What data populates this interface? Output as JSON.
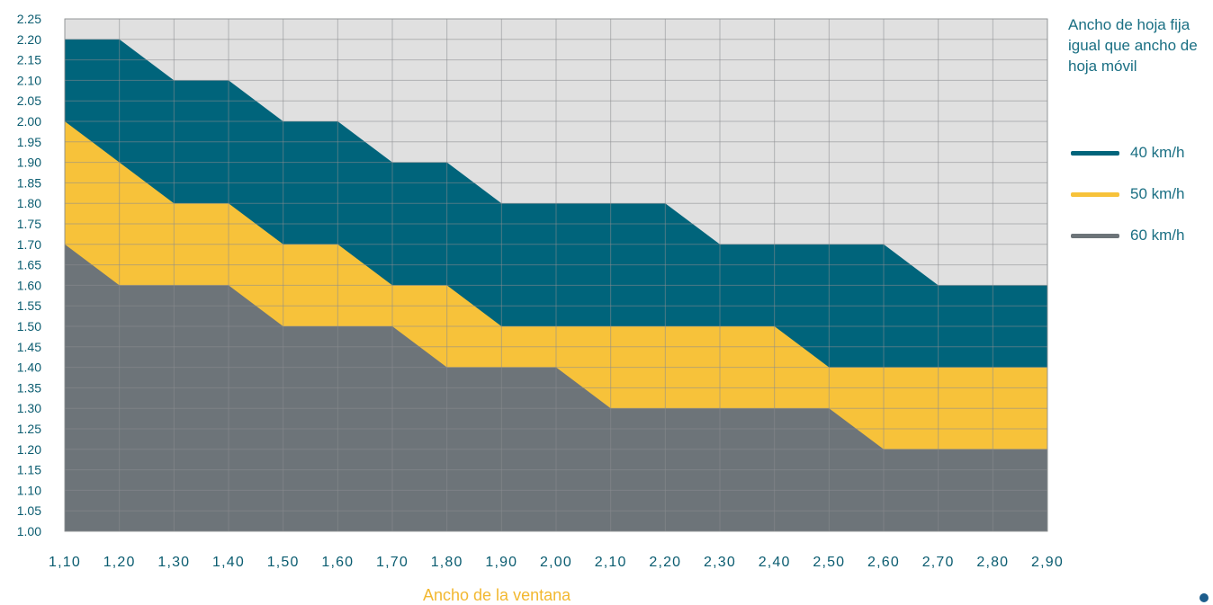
{
  "colors": {
    "band_40": "#00647b",
    "band_50": "#f7c23a",
    "band_60": "#6d7479",
    "plot_bg": "#e0e0e0",
    "grid": "#8a8d90",
    "tick_label": "#0a5c70",
    "legend_text": "#1a6f83",
    "xlabel": "#f2b830",
    "corner_mark": "#1d5d8c"
  },
  "legend": {
    "title": "Ancho de hoja fija igual que ancho de hoja móvil",
    "placement": "right",
    "items": [
      {
        "label": "40 km/h",
        "color": "#00647b"
      },
      {
        "label": "50 km/h",
        "color": "#f7c23a"
      },
      {
        "label": "60 km/h",
        "color": "#6d7479"
      }
    ]
  },
  "chart_data": {
    "type": "area",
    "title": "",
    "xlabel": "Ancho de la ventana",
    "ylabel": "",
    "x": [
      1.1,
      1.2,
      1.3,
      1.4,
      1.5,
      1.6,
      1.7,
      1.8,
      1.9,
      2.0,
      2.1,
      2.2,
      2.3,
      2.4,
      2.5,
      2.6,
      2.7,
      2.8,
      2.9
    ],
    "x_tick_labels": [
      "1,10",
      "1,20",
      "1,30",
      "1,40",
      "1,50",
      "1,60",
      "1,70",
      "1,80",
      "1,90",
      "2,00",
      "2,10",
      "2,20",
      "2,30",
      "2,40",
      "2,50",
      "2,60",
      "2,70",
      "2,80",
      "2,90"
    ],
    "y_tick_labels": [
      "2.25",
      "2.20",
      "2.15",
      "2.10",
      "2.05",
      "2.00",
      "1.95",
      "1.90",
      "1.85",
      "1.80",
      "1.75",
      "1.70",
      "1.65",
      "1.60",
      "1.55",
      "1.50",
      "1.45",
      "1.40",
      "1.35",
      "1.30",
      "1.25",
      "1.20",
      "1.15",
      "1.10",
      "1.05",
      "1.00"
    ],
    "xlim": [
      1.1,
      2.9
    ],
    "ylim": [
      1.0,
      2.25
    ],
    "grid": true,
    "series": [
      {
        "name": "40 km/h",
        "values": [
          2.2,
          2.2,
          2.1,
          2.1,
          2.0,
          2.0,
          1.9,
          1.9,
          1.8,
          1.8,
          1.8,
          1.8,
          1.7,
          1.7,
          1.7,
          1.7,
          1.6,
          1.6,
          1.6
        ]
      },
      {
        "name": "50 km/h",
        "values": [
          2.0,
          1.9,
          1.8,
          1.8,
          1.7,
          1.7,
          1.6,
          1.6,
          1.5,
          1.5,
          1.5,
          1.5,
          1.5,
          1.5,
          1.4,
          1.4,
          1.4,
          1.4,
          1.4
        ]
      },
      {
        "name": "60 km/h",
        "values": [
          1.7,
          1.6,
          1.6,
          1.6,
          1.5,
          1.5,
          1.5,
          1.4,
          1.4,
          1.4,
          1.3,
          1.3,
          1.3,
          1.3,
          1.3,
          1.2,
          1.2,
          1.2,
          1.2
        ]
      }
    ]
  }
}
